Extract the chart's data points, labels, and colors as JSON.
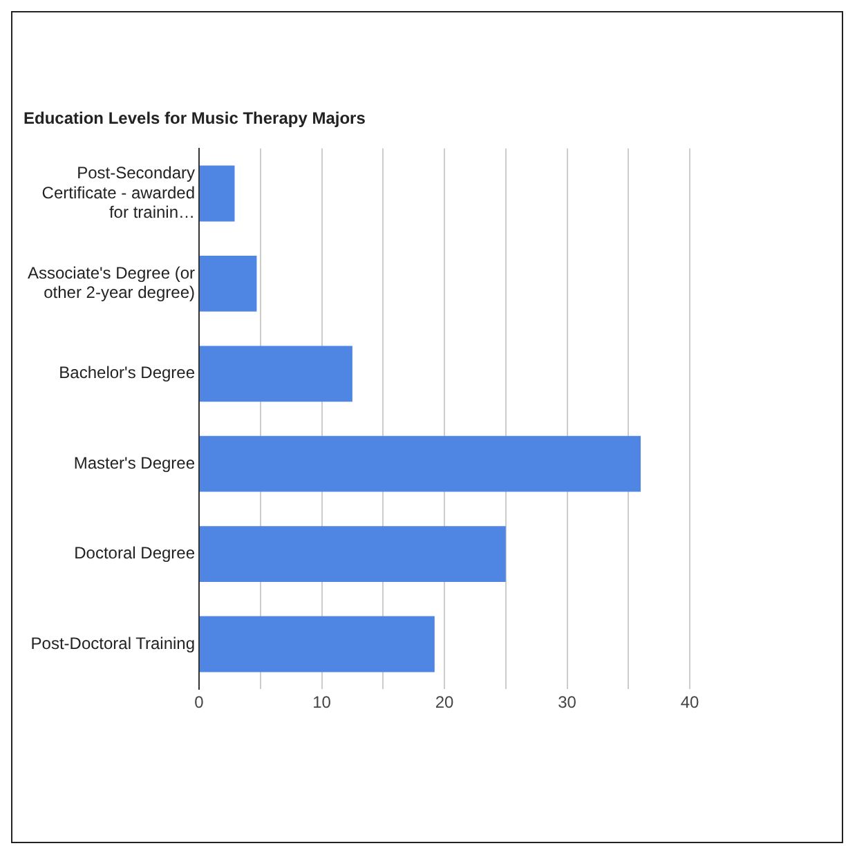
{
  "chart_data": {
    "type": "bar",
    "orientation": "horizontal",
    "title": "Education Levels for Music Therapy Majors",
    "categories": [
      "Post-Secondary Certificate - awarded for trainin…",
      "Associate's Degree (or other 2-year degree)",
      "Bachelor's Degree",
      "Master's Degree",
      "Doctoral Degree",
      "Post-Doctoral Training"
    ],
    "values": [
      2.9,
      4.7,
      12.5,
      36.0,
      25.0,
      19.2
    ],
    "color": "#4f86e3",
    "xlim": [
      0,
      40
    ],
    "xticks": [
      0,
      {
        "value": 5,
        "label": null
      },
      10,
      {
        "value": 15,
        "label": null
      },
      20,
      {
        "value": 25,
        "label": null
      },
      30,
      {
        "value": 35,
        "label": null
      },
      40
    ],
    "grid": "x",
    "legend": false
  }
}
